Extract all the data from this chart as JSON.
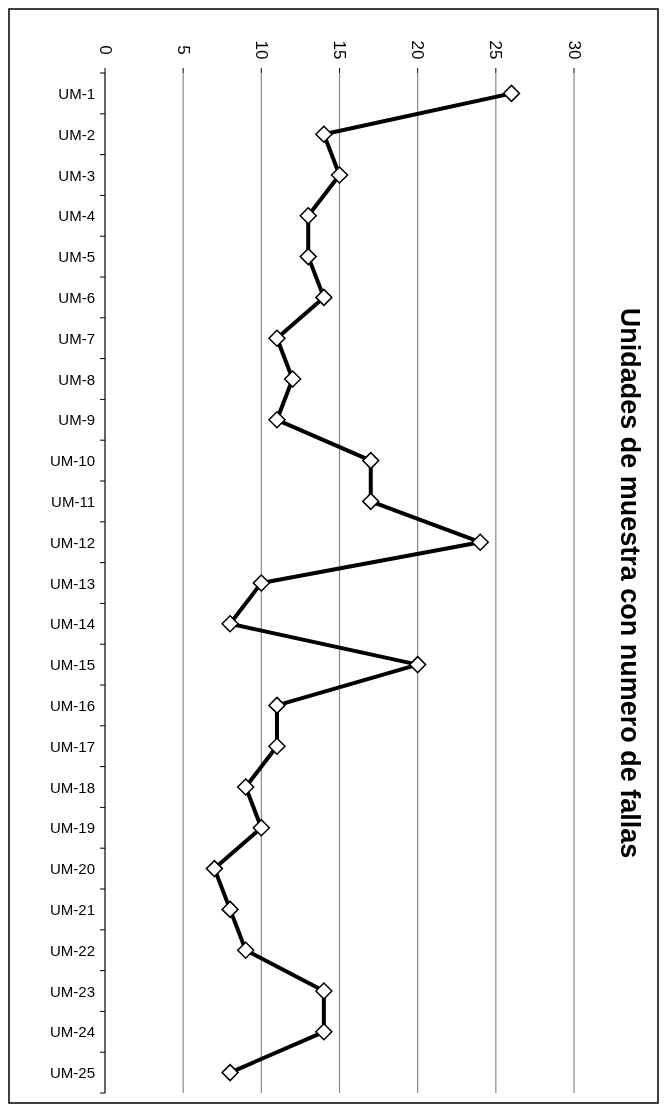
{
  "chart_data": {
    "type": "line",
    "title": "Unidades de muestra con numero de fallas",
    "orientation": "horizontal",
    "categories": [
      "UM-1",
      "UM-2",
      "UM-3",
      "UM-4",
      "UM-5",
      "UM-6",
      "UM-7",
      "UM-8",
      "UM-9",
      "UM-10",
      "UM-11",
      "UM-12",
      "UM-13",
      "UM-14",
      "UM-15",
      "UM-16",
      "UM-17",
      "UM-18",
      "UM-19",
      "UM-20",
      "UM-21",
      "UM-22",
      "UM-23",
      "UM-24",
      "UM-25"
    ],
    "values": [
      26,
      14,
      15,
      13,
      13,
      14,
      11,
      12,
      11,
      17,
      17,
      24,
      10,
      8,
      20,
      11,
      11,
      9,
      10,
      7,
      8,
      9,
      14,
      14,
      8
    ],
    "color": "#000000",
    "xlim": [
      0,
      30
    ],
    "xticks": [
      0,
      5,
      10,
      15,
      20,
      25,
      30
    ],
    "grid": "x",
    "marker": "diamond"
  }
}
